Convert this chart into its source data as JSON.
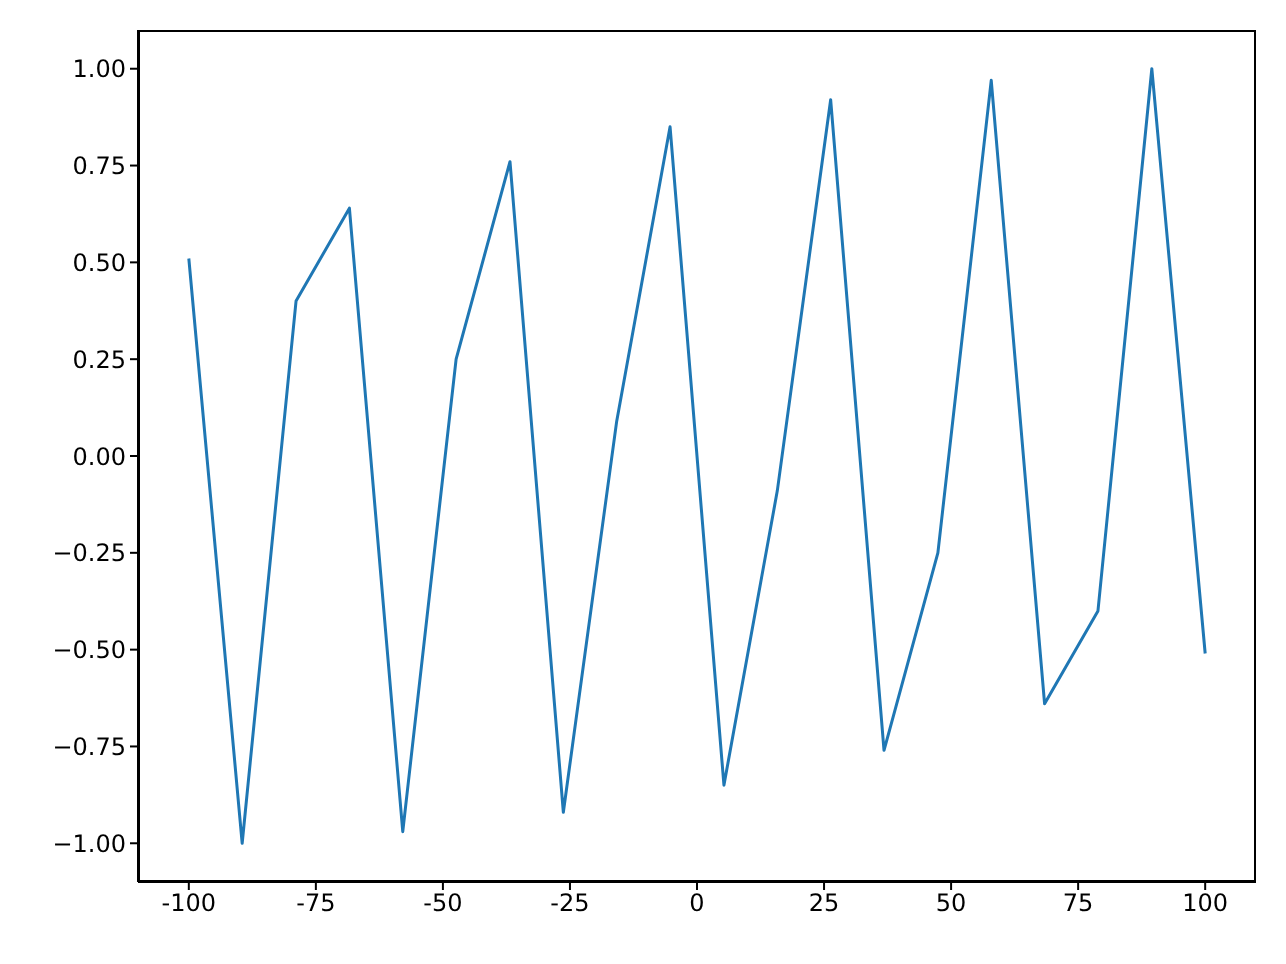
{
  "chart_data": {
    "type": "line",
    "x": [
      -100,
      -89.5,
      -78.9,
      -68.4,
      -57.9,
      -47.4,
      -36.8,
      -26.3,
      -15.8,
      -5.3,
      5.3,
      15.8,
      26.3,
      36.8,
      47.4,
      57.9,
      68.4,
      78.9,
      89.5,
      100
    ],
    "series": [
      {
        "color": "#1f77b4",
        "values": [
          0.51,
          -1.0,
          0.4,
          0.64,
          -0.97,
          0.25,
          0.76,
          -0.92,
          0.09,
          0.85,
          -0.85,
          -0.09,
          0.92,
          -0.76,
          -0.25,
          0.97,
          -0.64,
          -0.4,
          1.0,
          -0.51
        ]
      }
    ],
    "xlim": [
      -110,
      110
    ],
    "xticks": [
      -100,
      -75,
      -50,
      -25,
      0,
      25,
      50,
      75,
      100
    ],
    "ylim": [
      -1.1,
      1.1
    ],
    "yticks": [
      {
        "value": -1,
        "label": "−1.00"
      },
      {
        "value": -0.75,
        "label": "−0.75"
      },
      {
        "value": -0.5,
        "label": "−0.50"
      },
      {
        "value": -0.25,
        "label": "−0.25"
      },
      {
        "value": 0,
        "label": "0.00"
      },
      {
        "value": 0.25,
        "label": "0.25"
      },
      {
        "value": 0.5,
        "label": "0.50"
      },
      {
        "value": 0.75,
        "label": "0.75"
      },
      {
        "value": 1,
        "label": "1.00"
      }
    ],
    "grid": false,
    "legend": false,
    "marker": "none",
    "line_style": "solid"
  }
}
